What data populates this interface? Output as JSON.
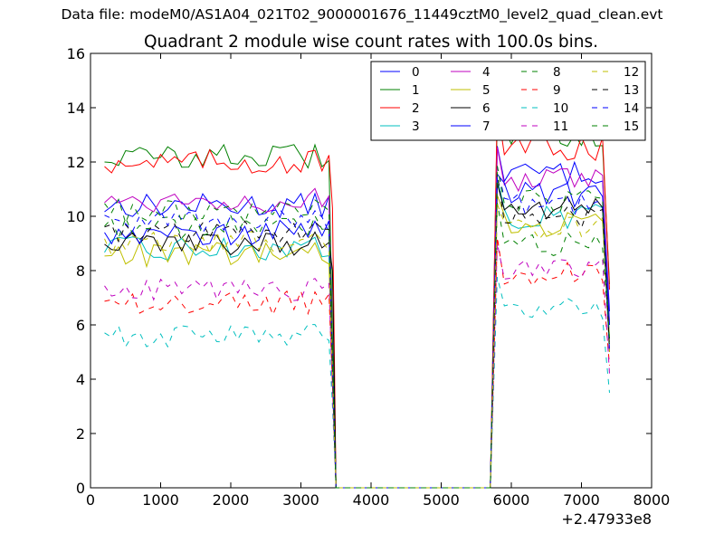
{
  "header": {
    "suptitle": "Data file: modeM0/AS1A04_021T02_9000001676_11449cztM0_level2_quad_clean.evt",
    "title": "Quadrant 2 module wise count rates with 100.0s bins."
  },
  "chart_data": {
    "type": "line",
    "title": "Quadrant 2 module wise count rates with 100.0s bins.",
    "xlabel": "",
    "ylabel": "",
    "x_offset_label": "+2.47933e8",
    "xlim": [
      0,
      8000
    ],
    "ylim": [
      0,
      16
    ],
    "x_ticks": [
      0,
      1000,
      2000,
      3000,
      4000,
      5000,
      6000,
      7000,
      8000
    ],
    "y_ticks": [
      0,
      2,
      4,
      6,
      8,
      10,
      12,
      14,
      16
    ],
    "grid": false,
    "legend_position": "top-right",
    "legend_columns": 4,
    "segments": [
      {
        "x_start": 200,
        "x_end": 3400,
        "bin": 100
      },
      {
        "x_start": 5800,
        "x_end": 7300,
        "bin": 100
      }
    ],
    "zero_range": [
      3500,
      5700
    ],
    "final_x": 7400,
    "series": [
      {
        "name": "0",
        "color": "#0000ff",
        "dash": "solid",
        "level1": 10.4,
        "level2": 11.6,
        "drop_value": 4.5,
        "final_value": 6.5
      },
      {
        "name": "1",
        "color": "#008000",
        "dash": "solid",
        "level1": 12.2,
        "level2": 13.0,
        "drop_value": 5.5,
        "final_value": 7.5
      },
      {
        "name": "2",
        "color": "#ff0000",
        "dash": "solid",
        "level1": 12.0,
        "level2": 12.5,
        "drop_value": 10.3,
        "final_value": 7.3
      },
      {
        "name": "3",
        "color": "#00bfbf",
        "dash": "solid",
        "level1": 8.8,
        "level2": 10.0,
        "drop_value": 4.0,
        "final_value": 5.5
      },
      {
        "name": "4",
        "color": "#bf00bf",
        "dash": "solid",
        "level1": 10.6,
        "level2": 11.3,
        "drop_value": 4.5,
        "final_value": 6.0
      },
      {
        "name": "5",
        "color": "#bfbf00",
        "dash": "solid",
        "level1": 8.6,
        "level2": 9.7,
        "drop_value": 4.0,
        "final_value": 5.5
      },
      {
        "name": "6",
        "color": "#000000",
        "dash": "solid",
        "level1": 9.0,
        "level2": 10.3,
        "drop_value": 8.0,
        "final_value": 5.0
      },
      {
        "name": "7",
        "color": "#0000ff",
        "dash": "solid",
        "level1": 9.4,
        "level2": 10.8,
        "drop_value": 4.5,
        "final_value": 6.0
      },
      {
        "name": "8",
        "color": "#008000",
        "dash": "dashed",
        "level1": 9.6,
        "level2": 9.0,
        "drop_value": 4.5,
        "final_value": 5.5
      },
      {
        "name": "9",
        "color": "#ff0000",
        "dash": "dashed",
        "level1": 6.8,
        "level2": 7.9,
        "drop_value": 3.8,
        "final_value": 4.5
      },
      {
        "name": "10",
        "color": "#00bfbf",
        "dash": "dashed",
        "level1": 5.6,
        "level2": 6.6,
        "drop_value": 3.0,
        "final_value": 3.5
      },
      {
        "name": "11",
        "color": "#bf00bf",
        "dash": "dashed",
        "level1": 7.3,
        "level2": 8.0,
        "drop_value": 3.5,
        "final_value": 4.2
      },
      {
        "name": "12",
        "color": "#bfbf00",
        "dash": "dashed",
        "level1": 9.0,
        "level2": 9.6,
        "drop_value": 4.2,
        "final_value": 5.0
      },
      {
        "name": "13",
        "color": "#000000",
        "dash": "dashed",
        "level1": 9.4,
        "level2": 10.0,
        "drop_value": 4.5,
        "final_value": 5.2
      },
      {
        "name": "14",
        "color": "#0000ff",
        "dash": "dashed",
        "level1": 9.8,
        "level2": 10.4,
        "drop_value": 4.4,
        "final_value": 5.0
      },
      {
        "name": "15",
        "color": "#008000",
        "dash": "dashed",
        "level1": 10.2,
        "level2": 10.6,
        "drop_value": 4.6,
        "final_value": 5.3
      }
    ]
  }
}
